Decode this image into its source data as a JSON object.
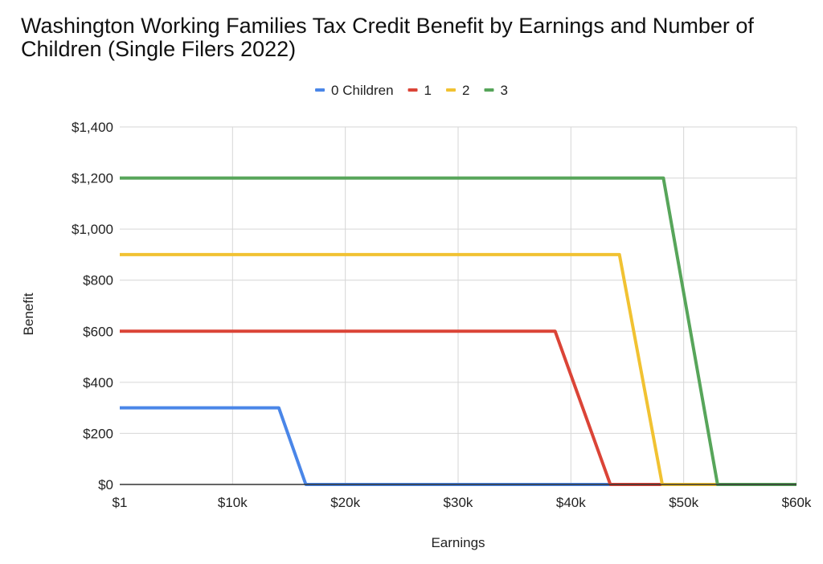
{
  "chart_data": {
    "type": "line",
    "title": "Washington Working Families Tax Credit Benefit by Earnings and Number of Children (Single Filers 2022)",
    "xlabel": "Earnings",
    "ylabel": "Benefit",
    "xlim": [
      1,
      60000
    ],
    "ylim": [
      0,
      1400
    ],
    "x_ticks": [
      {
        "value": 1,
        "label": "$1"
      },
      {
        "value": 10000,
        "label": "$10k"
      },
      {
        "value": 20000,
        "label": "$20k"
      },
      {
        "value": 30000,
        "label": "$30k"
      },
      {
        "value": 40000,
        "label": "$40k"
      },
      {
        "value": 50000,
        "label": "$50k"
      },
      {
        "value": 60000,
        "label": "$60k"
      }
    ],
    "y_ticks": [
      {
        "value": 0,
        "label": "$0"
      },
      {
        "value": 200,
        "label": "$200"
      },
      {
        "value": 400,
        "label": "$400"
      },
      {
        "value": 600,
        "label": "$600"
      },
      {
        "value": 800,
        "label": "$800"
      },
      {
        "value": 1000,
        "label": "$1,000"
      },
      {
        "value": 1200,
        "label": "$1,200"
      },
      {
        "value": 1400,
        "label": "$1,400"
      }
    ],
    "grid": true,
    "legend_position": "top",
    "series": [
      {
        "name": "0 Children",
        "color": "#4a86e8",
        "points": [
          [
            1,
            300
          ],
          [
            14100,
            300
          ],
          [
            16500,
            0
          ],
          [
            60000,
            0
          ]
        ]
      },
      {
        "name": "1",
        "color": "#db4437",
        "points": [
          [
            1,
            600
          ],
          [
            38600,
            600
          ],
          [
            43500,
            0
          ],
          [
            60000,
            0
          ]
        ]
      },
      {
        "name": "2",
        "color": "#f1c232",
        "points": [
          [
            1,
            900
          ],
          [
            44300,
            900
          ],
          [
            48100,
            0
          ],
          [
            60000,
            0
          ]
        ]
      },
      {
        "name": "3",
        "color": "#57a55a",
        "points": [
          [
            1,
            1200
          ],
          [
            48200,
            1200
          ],
          [
            53000,
            0
          ],
          [
            60000,
            0
          ]
        ]
      }
    ]
  }
}
